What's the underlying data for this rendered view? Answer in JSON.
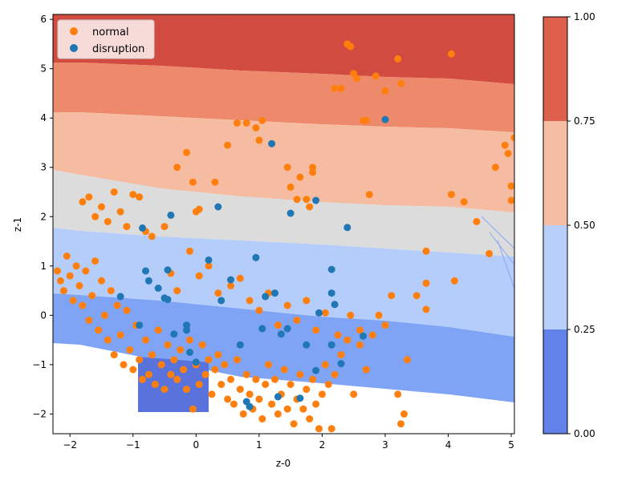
{
  "chart_data": {
    "type": "scatter",
    "title": "",
    "xlabel": "z-0",
    "ylabel": "z-1",
    "xlim": [
      -2.27,
      5.05
    ],
    "ylim": [
      -2.4,
      6.1
    ],
    "xticks": [
      "-2",
      "-1",
      "0",
      "1",
      "2",
      "3",
      "4",
      "5"
    ],
    "xtick_values": [
      -2,
      -1,
      0,
      1,
      2,
      3,
      4,
      5
    ],
    "yticks": [
      "-2",
      "-1",
      "0",
      "1",
      "2",
      "3",
      "4",
      "5",
      "6"
    ],
    "ytick_values": [
      -2,
      -1,
      0,
      1,
      2,
      3,
      4,
      5,
      6
    ],
    "grid": false,
    "legend_placement": "upper-left",
    "background_contour": {
      "type": "filled-contour",
      "levels": [
        0.0,
        0.25,
        0.5,
        0.75,
        1.0
      ],
      "level_colors": [
        "#6281e9",
        "#b7cff9",
        "#f5bda4",
        "#dd604c"
      ],
      "band_colors_rendered": [
        "#5a73dc",
        "#7fa3f5",
        "#b5cdfa",
        "#dcdcdc",
        "#f6bca1",
        "#ee8a6c",
        "#d24b40"
      ],
      "colorbar_ticks": [
        "0.00",
        "0.25",
        "0.50",
        "0.75",
        "1.00"
      ]
    },
    "series": [
      {
        "name": "normal",
        "color": "#ff7f0e",
        "points": [
          [
            -2.2,
            0.9
          ],
          [
            -2.15,
            0.7
          ],
          [
            -2.1,
            0.5
          ],
          [
            -2.05,
            1.2
          ],
          [
            -2.0,
            0.8
          ],
          [
            -1.95,
            0.3
          ],
          [
            -1.9,
            1.0
          ],
          [
            -1.85,
            0.6
          ],
          [
            -1.8,
            0.2
          ],
          [
            -1.75,
            0.9
          ],
          [
            -1.7,
            -0.1
          ],
          [
            -1.65,
            0.4
          ],
          [
            -1.6,
            1.1
          ],
          [
            -1.55,
            -0.3
          ],
          [
            -1.5,
            0.7
          ],
          [
            -1.45,
            0.0
          ],
          [
            -1.4,
            -0.5
          ],
          [
            -1.35,
            0.5
          ],
          [
            -1.3,
            -0.8
          ],
          [
            -1.25,
            0.2
          ],
          [
            -1.2,
            -0.4
          ],
          [
            -1.15,
            -1.0
          ],
          [
            -1.1,
            0.1
          ],
          [
            -1.05,
            -0.7
          ],
          [
            -1.0,
            -1.1
          ],
          [
            -0.95,
            -0.2
          ],
          [
            -0.9,
            -0.9
          ],
          [
            -0.85,
            -1.3
          ],
          [
            -0.8,
            -0.5
          ],
          [
            -0.75,
            -1.2
          ],
          [
            -0.7,
            -0.8
          ],
          [
            -0.65,
            -1.4
          ],
          [
            -0.6,
            -0.3
          ],
          [
            -0.55,
            -1.0
          ],
          [
            -0.5,
            -1.5
          ],
          [
            -0.45,
            -0.6
          ],
          [
            -0.4,
            -1.2
          ],
          [
            -0.35,
            -0.9
          ],
          [
            -0.3,
            -1.3
          ],
          [
            -0.25,
            -0.7
          ],
          [
            -0.2,
            -1.1
          ],
          [
            -0.15,
            -1.5
          ],
          [
            -0.1,
            -0.5
          ],
          [
            -0.05,
            -1.9
          ],
          [
            0.0,
            -1.0
          ],
          [
            0.05,
            -1.4
          ],
          [
            0.1,
            -0.6
          ],
          [
            0.15,
            -1.2
          ],
          [
            0.2,
            -0.9
          ],
          [
            0.25,
            -1.6
          ],
          [
            0.3,
            -1.1
          ],
          [
            0.35,
            -0.8
          ],
          [
            0.4,
            -1.4
          ],
          [
            0.45,
            -1.0
          ],
          [
            0.5,
            -1.7
          ],
          [
            0.55,
            -1.3
          ],
          [
            0.6,
            -1.8
          ],
          [
            0.65,
            -0.9
          ],
          [
            0.7,
            -1.5
          ],
          [
            0.75,
            -2.0
          ],
          [
            0.8,
            -1.2
          ],
          [
            0.85,
            -1.6
          ],
          [
            0.9,
            -1.9
          ],
          [
            0.95,
            -1.3
          ],
          [
            1.0,
            -1.7
          ],
          [
            1.05,
            -2.1
          ],
          [
            1.1,
            -1.4
          ],
          [
            1.15,
            -1.0
          ],
          [
            1.2,
            -1.8
          ],
          [
            1.25,
            -1.3
          ],
          [
            1.3,
            -2.0
          ],
          [
            1.35,
            -1.6
          ],
          [
            1.4,
            -1.1
          ],
          [
            1.45,
            -1.9
          ],
          [
            1.5,
            -1.4
          ],
          [
            1.55,
            -2.2
          ],
          [
            1.6,
            -1.7
          ],
          [
            1.65,
            -1.2
          ],
          [
            1.7,
            -1.9
          ],
          [
            1.75,
            -1.5
          ],
          [
            1.8,
            -2.1
          ],
          [
            1.85,
            -1.3
          ],
          [
            1.9,
            -1.8
          ],
          [
            1.95,
            -2.3
          ],
          [
            2.0,
            -1.6
          ],
          [
            2.05,
            -1.0
          ],
          [
            2.1,
            -1.4
          ],
          [
            2.15,
            -2.3
          ],
          [
            2.2,
            -1.2
          ],
          [
            2.3,
            -0.8
          ],
          [
            2.4,
            -0.5
          ],
          [
            2.5,
            -1.6
          ],
          [
            2.6,
            -0.3
          ],
          [
            2.7,
            -1.1
          ],
          [
            2.8,
            -0.4
          ],
          [
            2.9,
            0.0
          ],
          [
            3.0,
            -0.2
          ],
          [
            3.1,
            0.4
          ],
          [
            3.2,
            -1.6
          ],
          [
            3.25,
            -2.2
          ],
          [
            3.3,
            -2.0
          ],
          [
            3.35,
            -0.9
          ],
          [
            3.5,
            0.4
          ],
          [
            3.65,
            0.65
          ],
          [
            3.65,
            0.12
          ],
          [
            3.65,
            1.3
          ],
          [
            4.1,
            0.7
          ],
          [
            4.05,
            2.45
          ],
          [
            4.25,
            2.3
          ],
          [
            4.45,
            1.9
          ],
          [
            4.65,
            1.25
          ],
          [
            4.75,
            3.0
          ],
          [
            4.9,
            3.45
          ],
          [
            4.95,
            3.28
          ],
          [
            5.0,
            2.62
          ],
          [
            5.0,
            2.33
          ],
          [
            5.05,
            3.6
          ],
          [
            -1.8,
            2.3
          ],
          [
            -1.7,
            2.4
          ],
          [
            -1.6,
            2.0
          ],
          [
            -1.5,
            2.2
          ],
          [
            -1.4,
            1.9
          ],
          [
            -1.3,
            2.5
          ],
          [
            -1.2,
            2.1
          ],
          [
            -1.1,
            1.8
          ],
          [
            -1.0,
            2.45
          ],
          [
            -0.9,
            2.4
          ],
          [
            -0.8,
            1.7
          ],
          [
            -0.7,
            1.6
          ],
          [
            -0.5,
            1.8
          ],
          [
            -0.3,
            3.0
          ],
          [
            -0.15,
            3.3
          ],
          [
            -0.05,
            2.7
          ],
          [
            0.0,
            2.1
          ],
          [
            0.05,
            2.15
          ],
          [
            0.3,
            2.7
          ],
          [
            0.5,
            3.45
          ],
          [
            0.65,
            3.9
          ],
          [
            0.8,
            3.9
          ],
          [
            0.95,
            3.8
          ],
          [
            1.0,
            3.55
          ],
          [
            1.05,
            3.95
          ],
          [
            1.45,
            3.0
          ],
          [
            1.5,
            2.6
          ],
          [
            1.6,
            2.35
          ],
          [
            1.65,
            2.8
          ],
          [
            1.8,
            2.2
          ],
          [
            1.85,
            3.0
          ],
          [
            1.85,
            2.9
          ],
          [
            1.75,
            2.35
          ],
          [
            2.2,
            4.6
          ],
          [
            2.3,
            4.6
          ],
          [
            2.4,
            5.5
          ],
          [
            2.45,
            5.45
          ],
          [
            2.5,
            4.9
          ],
          [
            2.55,
            4.8
          ],
          [
            2.65,
            3.95
          ],
          [
            2.7,
            3.95
          ],
          [
            2.75,
            2.45
          ],
          [
            2.85,
            4.85
          ],
          [
            3.0,
            4.55
          ],
          [
            3.2,
            5.2
          ],
          [
            3.25,
            4.7
          ],
          [
            4.05,
            5.3
          ],
          [
            -0.4,
            0.85
          ],
          [
            -0.3,
            0.5
          ],
          [
            -0.1,
            1.3
          ],
          [
            0.05,
            0.8
          ],
          [
            0.2,
            1.0
          ],
          [
            0.35,
            0.45
          ],
          [
            0.55,
            0.6
          ],
          [
            0.7,
            0.75
          ],
          [
            0.85,
            0.3
          ],
          [
            1.0,
            0.1
          ],
          [
            1.15,
            0.45
          ],
          [
            1.3,
            -0.2
          ],
          [
            1.45,
            0.2
          ],
          [
            1.6,
            -0.1
          ],
          [
            1.75,
            0.3
          ],
          [
            1.9,
            -0.3
          ],
          [
            2.05,
            0.05
          ],
          [
            2.25,
            -0.4
          ],
          [
            2.45,
            0.0
          ],
          [
            2.6,
            -0.6
          ]
        ]
      },
      {
        "name": "disruption",
        "color": "#1f77b4",
        "points": [
          [
            -1.2,
            0.38
          ],
          [
            -0.9,
            -0.2
          ],
          [
            -0.8,
            0.9
          ],
          [
            -0.75,
            0.7
          ],
          [
            -0.6,
            0.55
          ],
          [
            -0.45,
            0.92
          ],
          [
            -0.5,
            0.35
          ],
          [
            -0.45,
            0.32
          ],
          [
            -0.35,
            -0.38
          ],
          [
            -0.15,
            -0.2
          ],
          [
            -0.15,
            -0.3
          ],
          [
            -0.1,
            -0.75
          ],
          [
            0.0,
            -0.95
          ],
          [
            -0.4,
            2.03
          ],
          [
            0.2,
            1.12
          ],
          [
            0.35,
            2.2
          ],
          [
            0.4,
            0.3
          ],
          [
            0.55,
            0.72
          ],
          [
            0.7,
            -0.6
          ],
          [
            0.8,
            -1.75
          ],
          [
            0.85,
            -1.85
          ],
          [
            0.95,
            1.17
          ],
          [
            1.05,
            -0.27
          ],
          [
            1.1,
            0.38
          ],
          [
            1.2,
            3.48
          ],
          [
            1.25,
            0.45
          ],
          [
            1.3,
            -1.65
          ],
          [
            1.35,
            -0.38
          ],
          [
            1.45,
            -0.27
          ],
          [
            1.5,
            2.07
          ],
          [
            1.65,
            -1.68
          ],
          [
            1.75,
            -0.6
          ],
          [
            1.9,
            2.33
          ],
          [
            1.9,
            -1.12
          ],
          [
            1.95,
            0.05
          ],
          [
            2.15,
            0.93
          ],
          [
            2.15,
            0.45
          ],
          [
            2.15,
            -0.6
          ],
          [
            2.2,
            0.22
          ],
          [
            2.3,
            -0.98
          ],
          [
            2.4,
            1.78
          ],
          [
            2.65,
            -0.42
          ],
          [
            3.0,
            3.97
          ],
          [
            -0.85,
            1.77
          ]
        ]
      }
    ]
  },
  "legend": {
    "items": [
      {
        "label": "normal",
        "color": "#ff7f0e"
      },
      {
        "label": "disruption",
        "color": "#1f77b4"
      }
    ]
  }
}
